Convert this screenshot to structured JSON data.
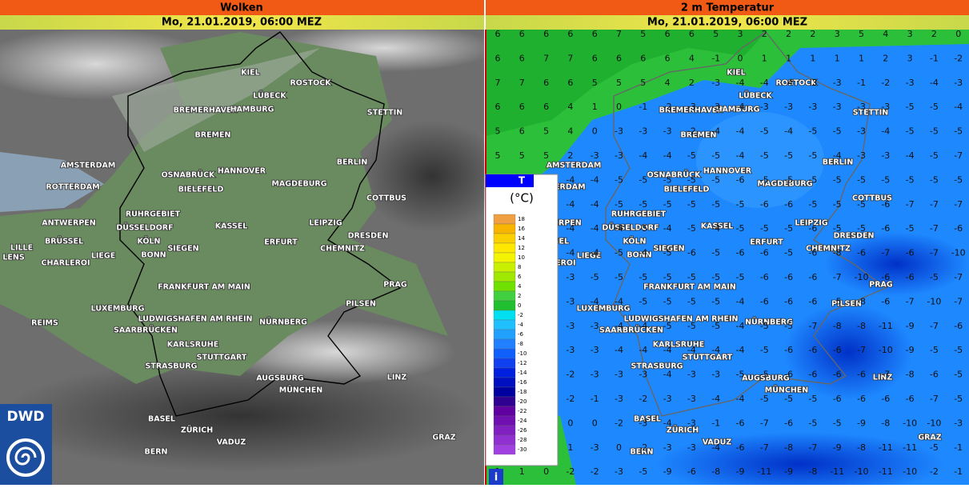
{
  "left_panel": {
    "title": "Wolken",
    "date": "Mo, 21.01.2019, 06:00 MEZ"
  },
  "right_panel": {
    "title": "2 m Temperatur",
    "date": "Mo, 21.01.2019, 06:00 MEZ"
  },
  "cities": [
    "KIEL",
    "LÜBECK",
    "ROSTOCK",
    "BREMERHAVEN",
    "HAMBURG",
    "STETTIN",
    "BREMEN",
    "AMSTERDAM",
    "OSNABRÜCK",
    "HANNOVER",
    "BERLIN",
    "ROTTERDAM",
    "BIELEFELD",
    "MAGDEBURG",
    "COTTBUS",
    "ANTWERPEN",
    "RUHRGEBIET",
    "DÜSSELDORF",
    "KASSEL",
    "LEIPZIG",
    "DRESDEN",
    "BRÜSSEL",
    "KÖLN",
    "ERFURT",
    "LILLE",
    "SIEGEN",
    "CHEMNITZ",
    "LENS",
    "LIEGE",
    "BONN",
    "CHARLEROI",
    "PRAG",
    "FRANKFURT AM MAIN",
    "LUXEMBURG",
    "PILSEN",
    "LUDWIGSHAFEN AM RHEIN",
    "NÜRNBERG",
    "REIMS",
    "SAARBRÜCKEN",
    "KARLSRUHE",
    "STUTTGART",
    "STRASBURG",
    "LINZ",
    "AUGSBURG",
    "MÜNCHEN",
    "BASEL",
    "ZÜRICH",
    "GRAZ",
    "VADUZ",
    "BERN"
  ],
  "temperature_grid": [
    [
      6,
      6,
      6,
      6,
      6,
      7,
      5,
      6,
      6,
      5,
      3,
      2,
      2,
      2,
      3,
      5,
      4,
      3,
      2,
      0
    ],
    [
      6,
      6,
      7,
      7,
      6,
      6,
      6,
      6,
      4,
      -1,
      0,
      1,
      1,
      1,
      1,
      1,
      2,
      3,
      -1,
      -2
    ],
    [
      7,
      7,
      6,
      6,
      5,
      5,
      5,
      4,
      2,
      -3,
      -4,
      -4,
      -4,
      -3,
      -3,
      -1,
      -2,
      -3,
      -4,
      -3
    ],
    [
      6,
      6,
      6,
      4,
      1,
      0,
      -1,
      -2,
      -3,
      -3,
      -4,
      -3,
      -3,
      -3,
      -3,
      -3,
      -3,
      -5,
      -5,
      -4
    ],
    [
      5,
      6,
      5,
      4,
      0,
      -3,
      -3,
      -3,
      -2,
      -4,
      -4,
      -5,
      -4,
      -5,
      -5,
      -3,
      -4,
      -5,
      -5,
      -5
    ],
    [
      5,
      5,
      5,
      2,
      -3,
      -3,
      -4,
      -4,
      -5,
      -5,
      -4,
      -5,
      -5,
      -5,
      -4,
      -3,
      -3,
      -4,
      -5,
      -7
    ],
    [
      null,
      null,
      null,
      -4,
      -4,
      -5,
      -5,
      -5,
      -5,
      -5,
      -6,
      -5,
      -5,
      -5,
      -5,
      -5,
      -5,
      -5,
      -5,
      -5
    ],
    [
      null,
      null,
      null,
      -4,
      -4,
      -5,
      -5,
      -5,
      -5,
      -5,
      -5,
      -6,
      -6,
      -5,
      -5,
      -5,
      -6,
      -7,
      -7,
      -7
    ],
    [
      null,
      null,
      null,
      -4,
      -4,
      -4,
      -5,
      -4,
      -5,
      -4,
      -5,
      -5,
      -5,
      -6,
      -5,
      -5,
      -6,
      -5,
      -7,
      -6
    ],
    [
      null,
      null,
      null,
      -4,
      -4,
      -5,
      -4,
      -5,
      -6,
      -5,
      -6,
      -6,
      -5,
      -6,
      -8,
      -6,
      -7,
      -6,
      -7,
      -10
    ],
    [
      null,
      null,
      null,
      -3,
      -5,
      -5,
      -5,
      -5,
      -5,
      -5,
      -5,
      -6,
      -6,
      -6,
      -7,
      -10,
      -6,
      -6,
      -5,
      -7
    ],
    [
      null,
      null,
      null,
      -3,
      -4,
      -4,
      -5,
      -5,
      -5,
      -5,
      -4,
      -6,
      -6,
      -6,
      -5,
      -8,
      -6,
      -7,
      -10,
      -7
    ],
    [
      null,
      null,
      null,
      -3,
      -3,
      -4,
      -4,
      -5,
      -5,
      -5,
      -4,
      -5,
      -5,
      -7,
      -8,
      -8,
      -11,
      -9,
      -7,
      -6
    ],
    [
      null,
      null,
      null,
      -3,
      -3,
      -4,
      -4,
      -4,
      -4,
      -4,
      -4,
      -5,
      -6,
      -6,
      -6,
      -7,
      -10,
      -9,
      -5,
      -5
    ],
    [
      null,
      null,
      null,
      -2,
      -3,
      -3,
      -3,
      -4,
      -3,
      -3,
      -5,
      -5,
      -6,
      -6,
      -6,
      -6,
      -7,
      -8,
      -6,
      -5
    ],
    [
      null,
      null,
      null,
      -2,
      -1,
      -3,
      -2,
      -3,
      -3,
      -4,
      -4,
      -5,
      -5,
      -5,
      -6,
      -6,
      -6,
      -6,
      -7,
      -5
    ],
    [
      null,
      null,
      null,
      0,
      0,
      -2,
      -3,
      -4,
      -3,
      -1,
      -6,
      -7,
      -6,
      -5,
      -5,
      -9,
      -8,
      -10,
      -10,
      -3
    ],
    [
      null,
      null,
      null,
      1,
      -3,
      0,
      -2,
      -3,
      -3,
      -4,
      -6,
      -7,
      -8,
      -7,
      -9,
      -8,
      -11,
      -11,
      -5,
      -1
    ],
    [
      1,
      1,
      0,
      -2,
      -2,
      -3,
      -5,
      -9,
      -6,
      -8,
      -9,
      -11,
      -9,
      -8,
      -11,
      -10,
      -11,
      -10,
      -2,
      -1
    ]
  ],
  "legend": {
    "title": "T",
    "unit": "(°C)",
    "ticks": [
      18,
      16,
      14,
      12,
      10,
      8,
      6,
      4,
      2,
      0,
      -2,
      -4,
      -6,
      -8,
      -10,
      -12,
      -14,
      -16,
      -18,
      -20,
      -22,
      -24,
      -26,
      -28,
      -30
    ],
    "colors": [
      "#f0a040",
      "#f7b500",
      "#fbd000",
      "#ffe800",
      "#f4f400",
      "#c8f000",
      "#a0e800",
      "#70e000",
      "#40d040",
      "#20c030",
      "#00e0f0",
      "#20c0ff",
      "#20a0ff",
      "#2080ff",
      "#1060ff",
      "#1040f0",
      "#0020e0",
      "#0010c0",
      "#0000a0",
      "#300090",
      "#6000a0",
      "#7010b0",
      "#8020c0",
      "#9030d0",
      "#a040e0"
    ]
  },
  "logo": "DWD"
}
